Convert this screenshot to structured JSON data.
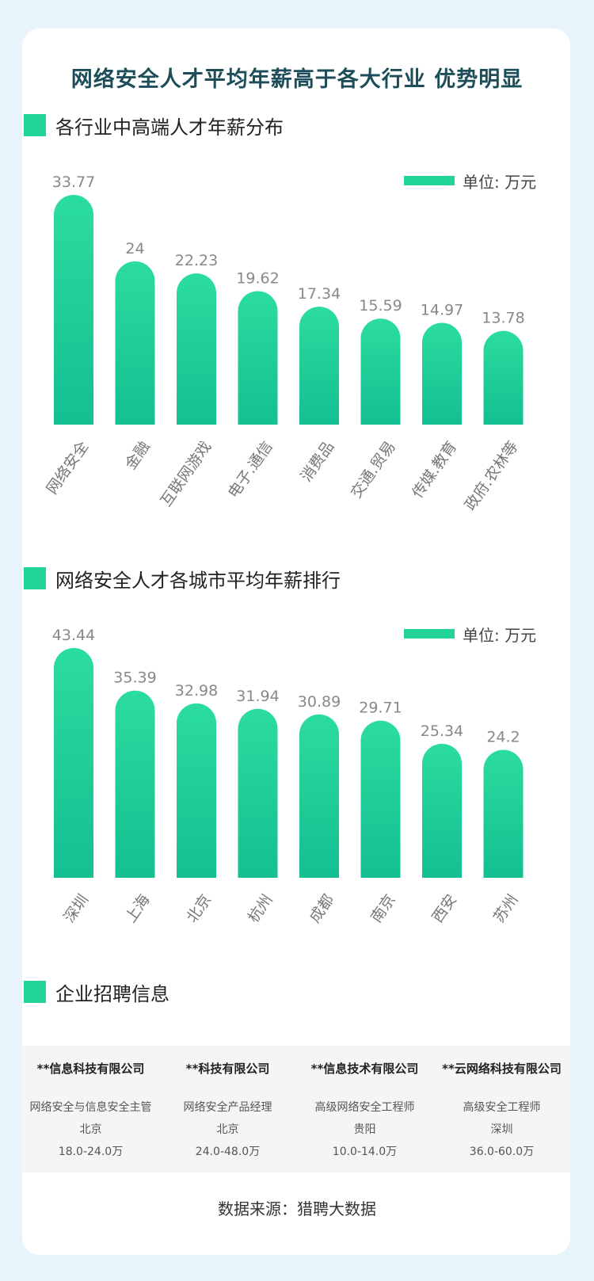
{
  "title": "网络安全人才平均年薪高于各大行业 优势明显",
  "colors": {
    "bar_top": "#2bdc9f",
    "bar_bottom": "#14bf91",
    "value_label": "#888888",
    "axis_label": "#777777"
  },
  "chart_data": [
    {
      "type": "bar",
      "title": "各行业中高端人才年薪分布",
      "unit_label": "单位: 万元",
      "categories": [
        "网络安全",
        "金融",
        "互联网游戏",
        "电子.通信",
        "消费品",
        "交通.贸易",
        "传媒.教育",
        "政府.农林等"
      ],
      "values": [
        33.77,
        24,
        22.23,
        19.62,
        17.34,
        15.59,
        14.97,
        13.78
      ],
      "value_labels": [
        "33.77",
        "24",
        "22.23",
        "19.62",
        "17.34",
        "15.59",
        "14.97",
        "13.78"
      ],
      "ylim": [
        0,
        33.77
      ],
      "grid": false,
      "legend": "top-right"
    },
    {
      "type": "bar",
      "title": "网络安全人才各城市平均年薪排行",
      "unit_label": "单位: 万元",
      "categories": [
        "深圳",
        "上海",
        "北京",
        "杭州",
        "成都",
        "南京",
        "西安",
        "苏州"
      ],
      "values": [
        43.44,
        35.39,
        32.98,
        31.94,
        30.89,
        29.71,
        25.34,
        24.2
      ],
      "value_labels": [
        "43.44",
        "35.39",
        "32.98",
        "31.94",
        "30.89",
        "29.71",
        "25.34",
        "24.2"
      ],
      "ylim": [
        0,
        43.44
      ],
      "grid": false,
      "legend": "top-right"
    }
  ],
  "recruit": {
    "title": "企业招聘信息",
    "companies": [
      {
        "name": "**信息科技有限公司",
        "job": "网络安全与信息安全主管",
        "city": "北京",
        "salary": "18.0-24.0万"
      },
      {
        "name": "**科技有限公司",
        "job": "网络安全产品经理",
        "city": "北京",
        "salary": "24.0-48.0万"
      },
      {
        "name": "**信息技术有限公司",
        "job": "高级网络安全工程师",
        "city": "贵阳",
        "salary": "10.0-14.0万"
      },
      {
        "name": "**云网络科技有限公司",
        "job": "高级安全工程师",
        "city": "深圳",
        "salary": "36.0-60.0万"
      }
    ]
  },
  "source": "数据来源：猎聘大数据"
}
